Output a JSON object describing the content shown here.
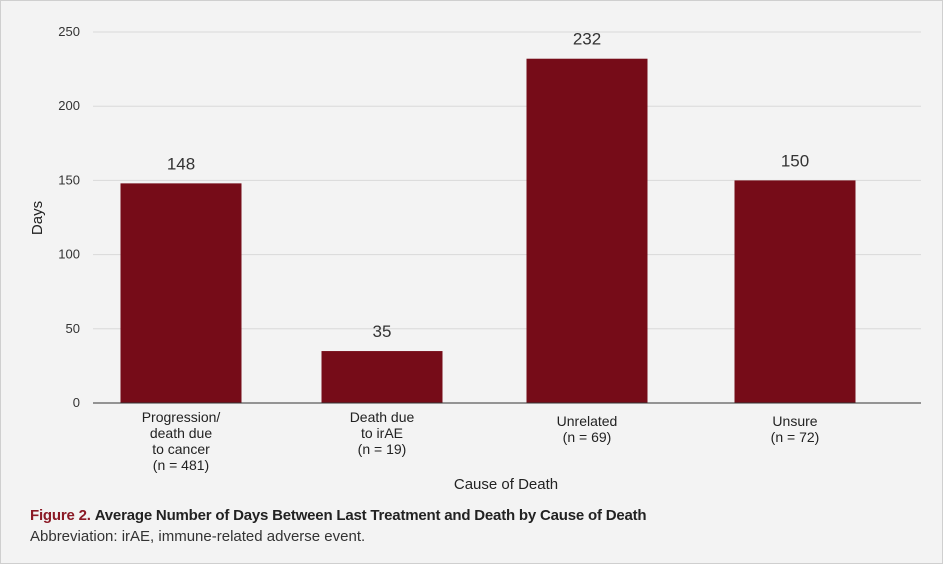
{
  "chart_data": {
    "type": "bar",
    "categories": [
      [
        "Progression/",
        "death due",
        "to cancer",
        "(n = 481)"
      ],
      [
        "Death due",
        "to irAE",
        "(n = 19)"
      ],
      [
        "Unrelated",
        "(n = 69)"
      ],
      [
        "Unsure",
        "(n = 72)"
      ]
    ],
    "values": [
      148,
      35,
      232,
      150
    ],
    "xlabel": "Cause of Death",
    "ylabel": "Days",
    "ylim": [
      0,
      250
    ],
    "yticks": [
      0,
      50,
      100,
      150,
      200,
      250
    ],
    "grid": true,
    "bar_color": "#760c18"
  },
  "caption": {
    "figure_number": "Figure 2.",
    "title": "Average Number of Days Between Last Treatment and Death by Cause of Death",
    "note": "Abbreviation: irAE, immune-related adverse event."
  }
}
